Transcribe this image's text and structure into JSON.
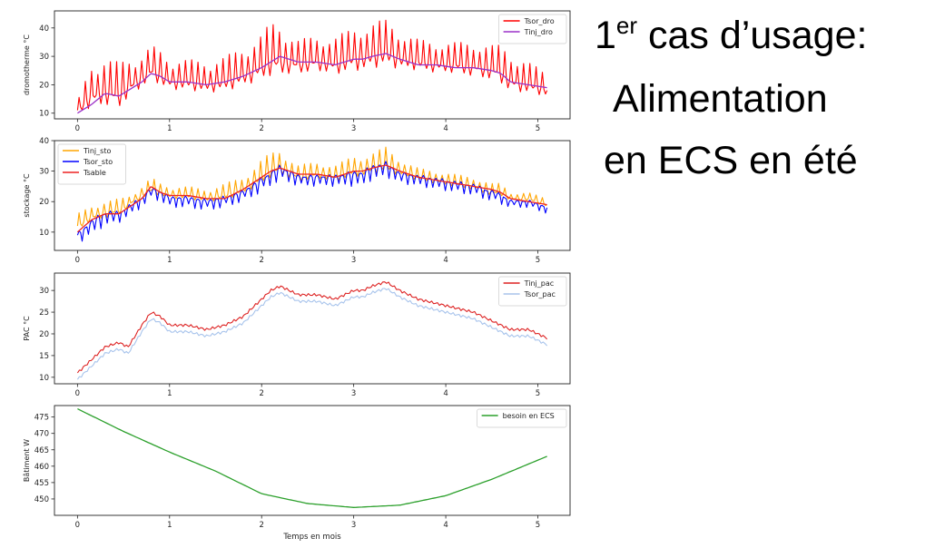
{
  "slide": {
    "title_number": "1",
    "title_superscript": "er",
    "title_rest": " cas d’usage:",
    "line2": "Alimentation",
    "line3": "en ECS en été"
  },
  "chart_data": [
    {
      "type": "line",
      "ylabel": "dromotherme °C",
      "xlabel": "",
      "xlim": [
        -0.25,
        5.35
      ],
      "ylim": [
        8,
        46
      ],
      "xticks": [
        0,
        1,
        2,
        3,
        4,
        5
      ],
      "yticks": [
        10,
        20,
        30,
        40
      ],
      "legend_position": "top-right",
      "series": [
        {
          "name": "Tsor_dro",
          "color": "#ff0000",
          "style": "spiky",
          "x": [
            0,
            0.15,
            0.3,
            0.45,
            0.55,
            0.7,
            0.8,
            0.9,
            1.0,
            1.2,
            1.4,
            1.6,
            1.8,
            2.0,
            2.1,
            2.2,
            2.4,
            2.6,
            2.8,
            3.0,
            3.1,
            3.2,
            3.35,
            3.5,
            3.7,
            3.9,
            4.1,
            4.3,
            4.5,
            4.6,
            4.7,
            4.9,
            5.1
          ],
          "values": [
            11,
            16,
            17,
            16,
            19,
            22,
            25,
            23,
            21,
            21,
            20,
            21,
            23,
            26,
            28,
            28,
            27,
            28,
            27,
            29,
            29,
            30,
            31,
            29,
            28,
            27,
            27,
            26,
            25,
            24,
            21,
            20,
            18
          ],
          "amplitude": [
            3,
            12,
            12,
            12,
            11,
            8,
            9,
            9,
            8,
            8,
            8,
            9,
            10,
            12,
            14,
            13,
            9,
            9,
            10,
            11,
            12,
            12,
            12,
            10,
            8,
            8,
            8,
            9,
            9,
            10,
            10,
            8,
            6
          ]
        },
        {
          "name": "Tinj_dro",
          "color": "#9b30c8",
          "style": "smooth",
          "x": [
            0,
            0.15,
            0.3,
            0.45,
            0.55,
            0.7,
            0.8,
            0.9,
            1.0,
            1.2,
            1.4,
            1.6,
            1.8,
            2.0,
            2.1,
            2.2,
            2.4,
            2.6,
            2.8,
            3.0,
            3.1,
            3.2,
            3.35,
            3.5,
            3.7,
            3.9,
            4.1,
            4.3,
            4.5,
            4.6,
            4.7,
            4.9,
            5.1
          ],
          "values": [
            10,
            13,
            17,
            16,
            18,
            21,
            24,
            23,
            21,
            21,
            20,
            21,
            23,
            26,
            28,
            30,
            28,
            28,
            27,
            29,
            29,
            30,
            31,
            29,
            27,
            27,
            26,
            26,
            25,
            24,
            21,
            20,
            19
          ]
        }
      ]
    },
    {
      "type": "line",
      "ylabel": "stockage °C",
      "xlabel": "",
      "xlim": [
        -0.25,
        5.35
      ],
      "ylim": [
        4,
        40
      ],
      "xticks": [
        0,
        1,
        2,
        3,
        4,
        5
      ],
      "yticks": [
        10,
        20,
        30,
        40
      ],
      "legend_position": "top-left",
      "series": [
        {
          "name": "Tinj_sto",
          "color": "#ffa500",
          "style": "spiky",
          "x": [
            0,
            0.15,
            0.3,
            0.45,
            0.55,
            0.7,
            0.8,
            0.9,
            1.0,
            1.2,
            1.4,
            1.6,
            1.8,
            2.0,
            2.1,
            2.2,
            2.4,
            2.6,
            2.8,
            3.0,
            3.1,
            3.2,
            3.35,
            3.5,
            3.7,
            3.9,
            4.1,
            4.3,
            4.5,
            4.6,
            4.7,
            4.9,
            5.1
          ],
          "values": [
            12,
            15,
            16,
            17,
            19,
            22,
            24,
            23,
            22,
            22,
            21,
            22,
            24,
            28,
            30,
            31,
            28,
            29,
            28,
            30,
            30,
            31,
            32,
            30,
            28,
            27,
            26,
            25,
            23,
            23,
            21,
            21,
            19
          ],
          "amplitude": [
            4,
            4,
            4,
            4,
            3,
            3,
            4,
            3,
            3,
            3,
            3,
            4,
            4,
            6,
            6,
            6,
            4,
            4,
            4,
            5,
            5,
            5,
            6,
            4,
            3,
            3,
            3,
            3,
            3,
            3,
            2,
            2,
            2
          ]
        },
        {
          "name": "Tsor_sto",
          "color": "#0000ff",
          "style": "spiky-down",
          "x": [
            0,
            0.15,
            0.3,
            0.45,
            0.55,
            0.7,
            0.8,
            0.9,
            1.0,
            1.2,
            1.4,
            1.6,
            1.8,
            2.0,
            2.1,
            2.2,
            2.4,
            2.6,
            2.8,
            3.0,
            3.1,
            3.2,
            3.35,
            3.5,
            3.7,
            3.9,
            4.1,
            4.3,
            4.5,
            4.6,
            4.7,
            4.9,
            5.1
          ],
          "values": [
            9,
            13,
            16,
            16,
            18,
            21,
            24,
            23,
            21,
            21,
            20,
            21,
            23,
            27,
            29,
            31,
            28,
            28,
            28,
            29,
            29,
            31,
            32,
            29,
            28,
            27,
            26,
            25,
            23,
            22,
            20,
            20,
            18
          ],
          "amplitude": [
            3,
            4,
            4,
            3,
            3,
            3,
            3,
            3,
            3,
            3,
            3,
            3,
            3,
            4,
            4,
            4,
            3,
            3,
            3,
            4,
            4,
            4,
            4,
            3,
            3,
            3,
            3,
            3,
            3,
            3,
            2,
            2,
            2
          ]
        },
        {
          "name": "Tsable",
          "color": "#ee2222",
          "style": "smooth",
          "x": [
            0,
            0.15,
            0.3,
            0.45,
            0.55,
            0.7,
            0.8,
            0.9,
            1.0,
            1.2,
            1.4,
            1.6,
            1.8,
            2.0,
            2.1,
            2.2,
            2.4,
            2.6,
            2.8,
            3.0,
            3.1,
            3.2,
            3.35,
            3.5,
            3.7,
            3.9,
            4.1,
            4.3,
            4.5,
            4.6,
            4.7,
            4.9,
            5.1
          ],
          "values": [
            10,
            14,
            16,
            16,
            18,
            21,
            25,
            23,
            22,
            22,
            21,
            21,
            24,
            28,
            30,
            31,
            29,
            29,
            28,
            30,
            30,
            31,
            32,
            30,
            28,
            27,
            26,
            25,
            24,
            23,
            21,
            20,
            19
          ]
        }
      ]
    },
    {
      "type": "line",
      "ylabel": "PAC °C",
      "xlabel": "",
      "xlim": [
        -0.25,
        5.35
      ],
      "ylim": [
        8.5,
        34
      ],
      "xticks": [
        0,
        1,
        2,
        3,
        4,
        5
      ],
      "yticks": [
        10,
        15,
        20,
        25,
        30
      ],
      "legend_position": "top-right",
      "series": [
        {
          "name": "Tinj_pac",
          "color": "#dd2222",
          "style": "jagged",
          "x": [
            0,
            0.15,
            0.3,
            0.45,
            0.55,
            0.7,
            0.8,
            0.9,
            1.0,
            1.2,
            1.4,
            1.6,
            1.8,
            2.0,
            2.1,
            2.2,
            2.4,
            2.6,
            2.8,
            3.0,
            3.1,
            3.2,
            3.35,
            3.5,
            3.7,
            3.9,
            4.1,
            4.3,
            4.5,
            4.6,
            4.7,
            4.9,
            5.1
          ],
          "values": [
            11,
            14,
            17,
            18,
            17,
            22,
            25,
            24,
            22,
            22,
            21,
            22,
            24,
            28,
            30,
            31,
            29,
            29,
            28,
            30,
            30,
            31,
            32,
            30,
            28,
            27,
            26,
            25,
            23,
            22,
            21,
            21,
            19
          ]
        },
        {
          "name": "Tsor_pac",
          "color": "#a8c4ec",
          "style": "jagged",
          "x": [
            0,
            0.15,
            0.3,
            0.45,
            0.55,
            0.7,
            0.8,
            0.9,
            1.0,
            1.2,
            1.4,
            1.6,
            1.8,
            2.0,
            2.1,
            2.2,
            2.4,
            2.6,
            2.8,
            3.0,
            3.1,
            3.2,
            3.35,
            3.5,
            3.7,
            3.9,
            4.1,
            4.3,
            4.5,
            4.6,
            4.7,
            4.9,
            5.1
          ],
          "values": [
            9.5,
            12.5,
            15.5,
            16.5,
            15.5,
            20.5,
            23.5,
            22.5,
            20.5,
            20.5,
            19.5,
            20.5,
            22.5,
            26.5,
            28.5,
            29.5,
            27.5,
            27.5,
            26.5,
            28.5,
            28.5,
            29.5,
            30.5,
            28.5,
            26.5,
            25.5,
            24.5,
            23.5,
            21.5,
            20.5,
            19.5,
            19.5,
            17.5
          ]
        }
      ]
    },
    {
      "type": "line",
      "ylabel": "Bâtiment W",
      "xlabel": "Temps en mois",
      "xlim": [
        -0.25,
        5.35
      ],
      "ylim": [
        445,
        478.5
      ],
      "xticks": [
        0,
        1,
        2,
        3,
        4,
        5
      ],
      "yticks": [
        450,
        455,
        460,
        465,
        470,
        475
      ],
      "legend_position": "top-right",
      "series": [
        {
          "name": "besoin en ECS",
          "color": "#2ca02c",
          "style": "smooth",
          "x": [
            0,
            0.5,
            1,
            1.5,
            2,
            2.5,
            3,
            3.5,
            4,
            4.5,
            5.1
          ],
          "values": [
            477.5,
            470.6,
            464.3,
            458.5,
            451.6,
            448.6,
            447.4,
            448.1,
            451.0,
            456.0,
            463.0
          ]
        }
      ]
    }
  ]
}
